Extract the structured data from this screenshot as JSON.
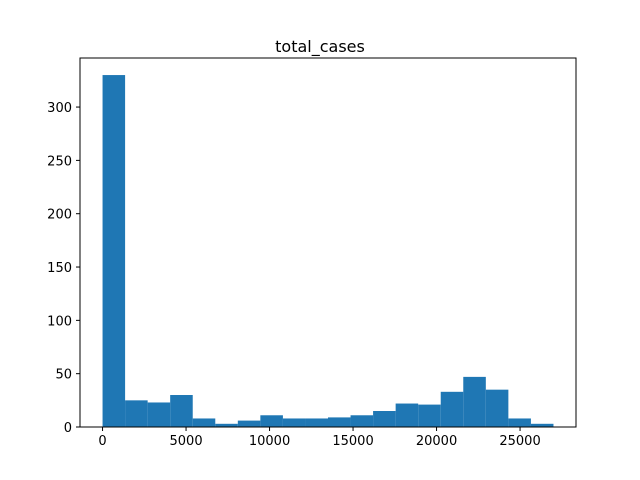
{
  "chart_data": {
    "type": "histogram",
    "title": "total_cases",
    "xlabel": "",
    "ylabel": "",
    "xlim": [
      -1350,
      28350
    ],
    "ylim": [
      0,
      346
    ],
    "bin_start": 0,
    "bin_width": 1350,
    "counts": [
      330,
      25,
      23,
      30,
      8,
      3,
      6,
      11,
      8,
      8,
      9,
      11,
      15,
      22,
      21,
      33,
      47,
      35,
      8,
      3
    ],
    "x_ticks": [
      0,
      5000,
      10000,
      15000,
      20000,
      25000
    ],
    "y_ticks": [
      0,
      50,
      100,
      150,
      200,
      250,
      300
    ],
    "bar_color": "#1f77b4",
    "grid": false,
    "legend": "none"
  }
}
